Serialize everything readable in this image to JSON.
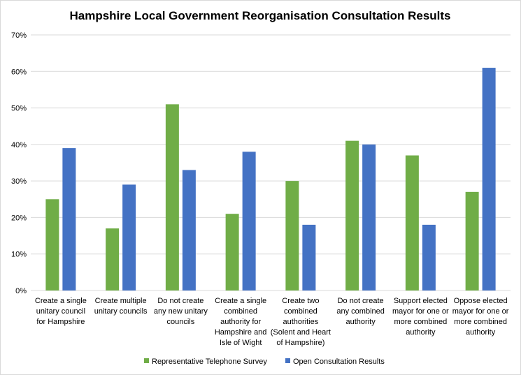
{
  "chart_data": {
    "type": "bar",
    "title": "Hampshire Local Government Reorganisation Consultation Results",
    "xlabel": "",
    "ylabel": "",
    "ylim": [
      0,
      70
    ],
    "yticks": [
      "0%",
      "10%",
      "20%",
      "30%",
      "40%",
      "50%",
      "60%",
      "70%"
    ],
    "ytick_values": [
      0,
      10,
      20,
      30,
      40,
      50,
      60,
      70
    ],
    "grid": true,
    "legend_position": "bottom",
    "categories": [
      "Create a single unitary council for Hampshire",
      "Create multiple unitary councils",
      "Do not create any new unitary councils",
      "Create a single combined authority for Hampshire and Isle of Wight",
      "Create two combined authorities (Solent and Heart of Hampshire)",
      "Do not create any combined authority",
      "Support elected mayor for one or more combined authority",
      "Oppose elected mayor for one or more combined authority"
    ],
    "category_lines": [
      [
        "Create a single",
        "unitary council",
        "for Hampshire"
      ],
      [
        "Create multiple",
        "unitary councils"
      ],
      [
        "Do not create",
        "any new unitary",
        "councils"
      ],
      [
        "Create a single",
        "combined",
        "authority for",
        "Hampshire and",
        "Isle of Wight"
      ],
      [
        "Create two",
        "combined",
        "authorities",
        "(Solent and Heart",
        "of Hampshire)"
      ],
      [
        "Do not create",
        "any combined",
        "authority"
      ],
      [
        "Support elected",
        "mayor for one or",
        "more combined",
        "authority"
      ],
      [
        "Oppose elected",
        "mayor for one or",
        "more combined",
        "authority"
      ]
    ],
    "series": [
      {
        "name": "Representative Telephone Survey",
        "color": "#70ad47",
        "values": [
          25,
          17,
          51,
          21,
          30,
          41,
          37,
          27
        ]
      },
      {
        "name": "Open Consultation Results",
        "color": "#4472c4",
        "values": [
          39,
          29,
          33,
          38,
          18,
          40,
          18,
          61
        ]
      }
    ]
  }
}
